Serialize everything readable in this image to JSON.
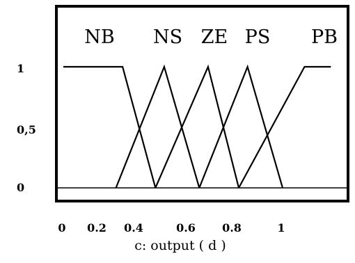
{
  "chart_data": {
    "type": "line",
    "xlabel": "c: output ( d )",
    "ylim": [
      0,
      1
    ],
    "x_ticks": [
      "0",
      "0.2",
      "0.4",
      "0.6",
      "0.8",
      "1"
    ],
    "y_ticks": [
      "1",
      "0,5",
      "0"
    ],
    "series": [
      {
        "name": "NB",
        "x": [
          0,
          0.27,
          0.42
        ],
        "y": [
          1,
          1,
          0
        ]
      },
      {
        "name": "NS",
        "x": [
          0.24,
          0.46,
          0.62
        ],
        "y": [
          0,
          1,
          0
        ]
      },
      {
        "name": "ZE",
        "x": [
          0.42,
          0.66,
          0.8
        ],
        "y": [
          0,
          1,
          0
        ]
      },
      {
        "name": "PS",
        "x": [
          0.62,
          0.84,
          1.0
        ],
        "y": [
          0,
          1,
          0
        ]
      },
      {
        "name": "PB",
        "x": [
          0.8,
          1.1,
          1.22
        ],
        "y": [
          0,
          1,
          1
        ]
      }
    ],
    "colors": {
      "line": "#000000",
      "background": "#ffffff"
    }
  }
}
